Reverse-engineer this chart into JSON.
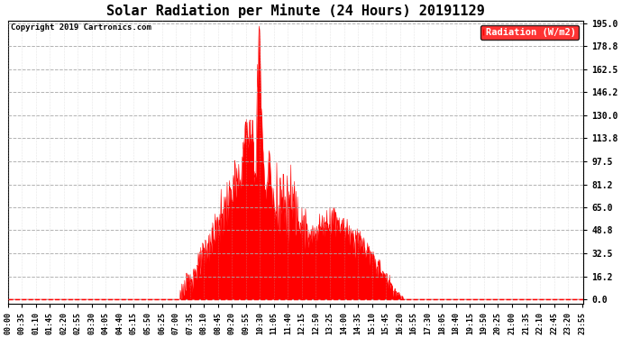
{
  "title": "Solar Radiation per Minute (24 Hours) 20191129",
  "copyright": "Copyright 2019 Cartronics.com",
  "legend_label": "Radiation (W/m2)",
  "y_ticks": [
    0.0,
    16.2,
    32.5,
    48.8,
    65.0,
    81.2,
    97.5,
    113.8,
    130.0,
    146.2,
    162.5,
    178.8,
    195.0
  ],
  "y_min": 0.0,
  "y_max": 195.0,
  "fill_color": "#FF0000",
  "line_color": "#FF0000",
  "background_color": "#FFFFFF",
  "grid_color": "#AAAAAA",
  "dashed_line_color": "#FF0000",
  "title_fontsize": 11,
  "x_tick_interval": 35,
  "total_minutes": 1440
}
